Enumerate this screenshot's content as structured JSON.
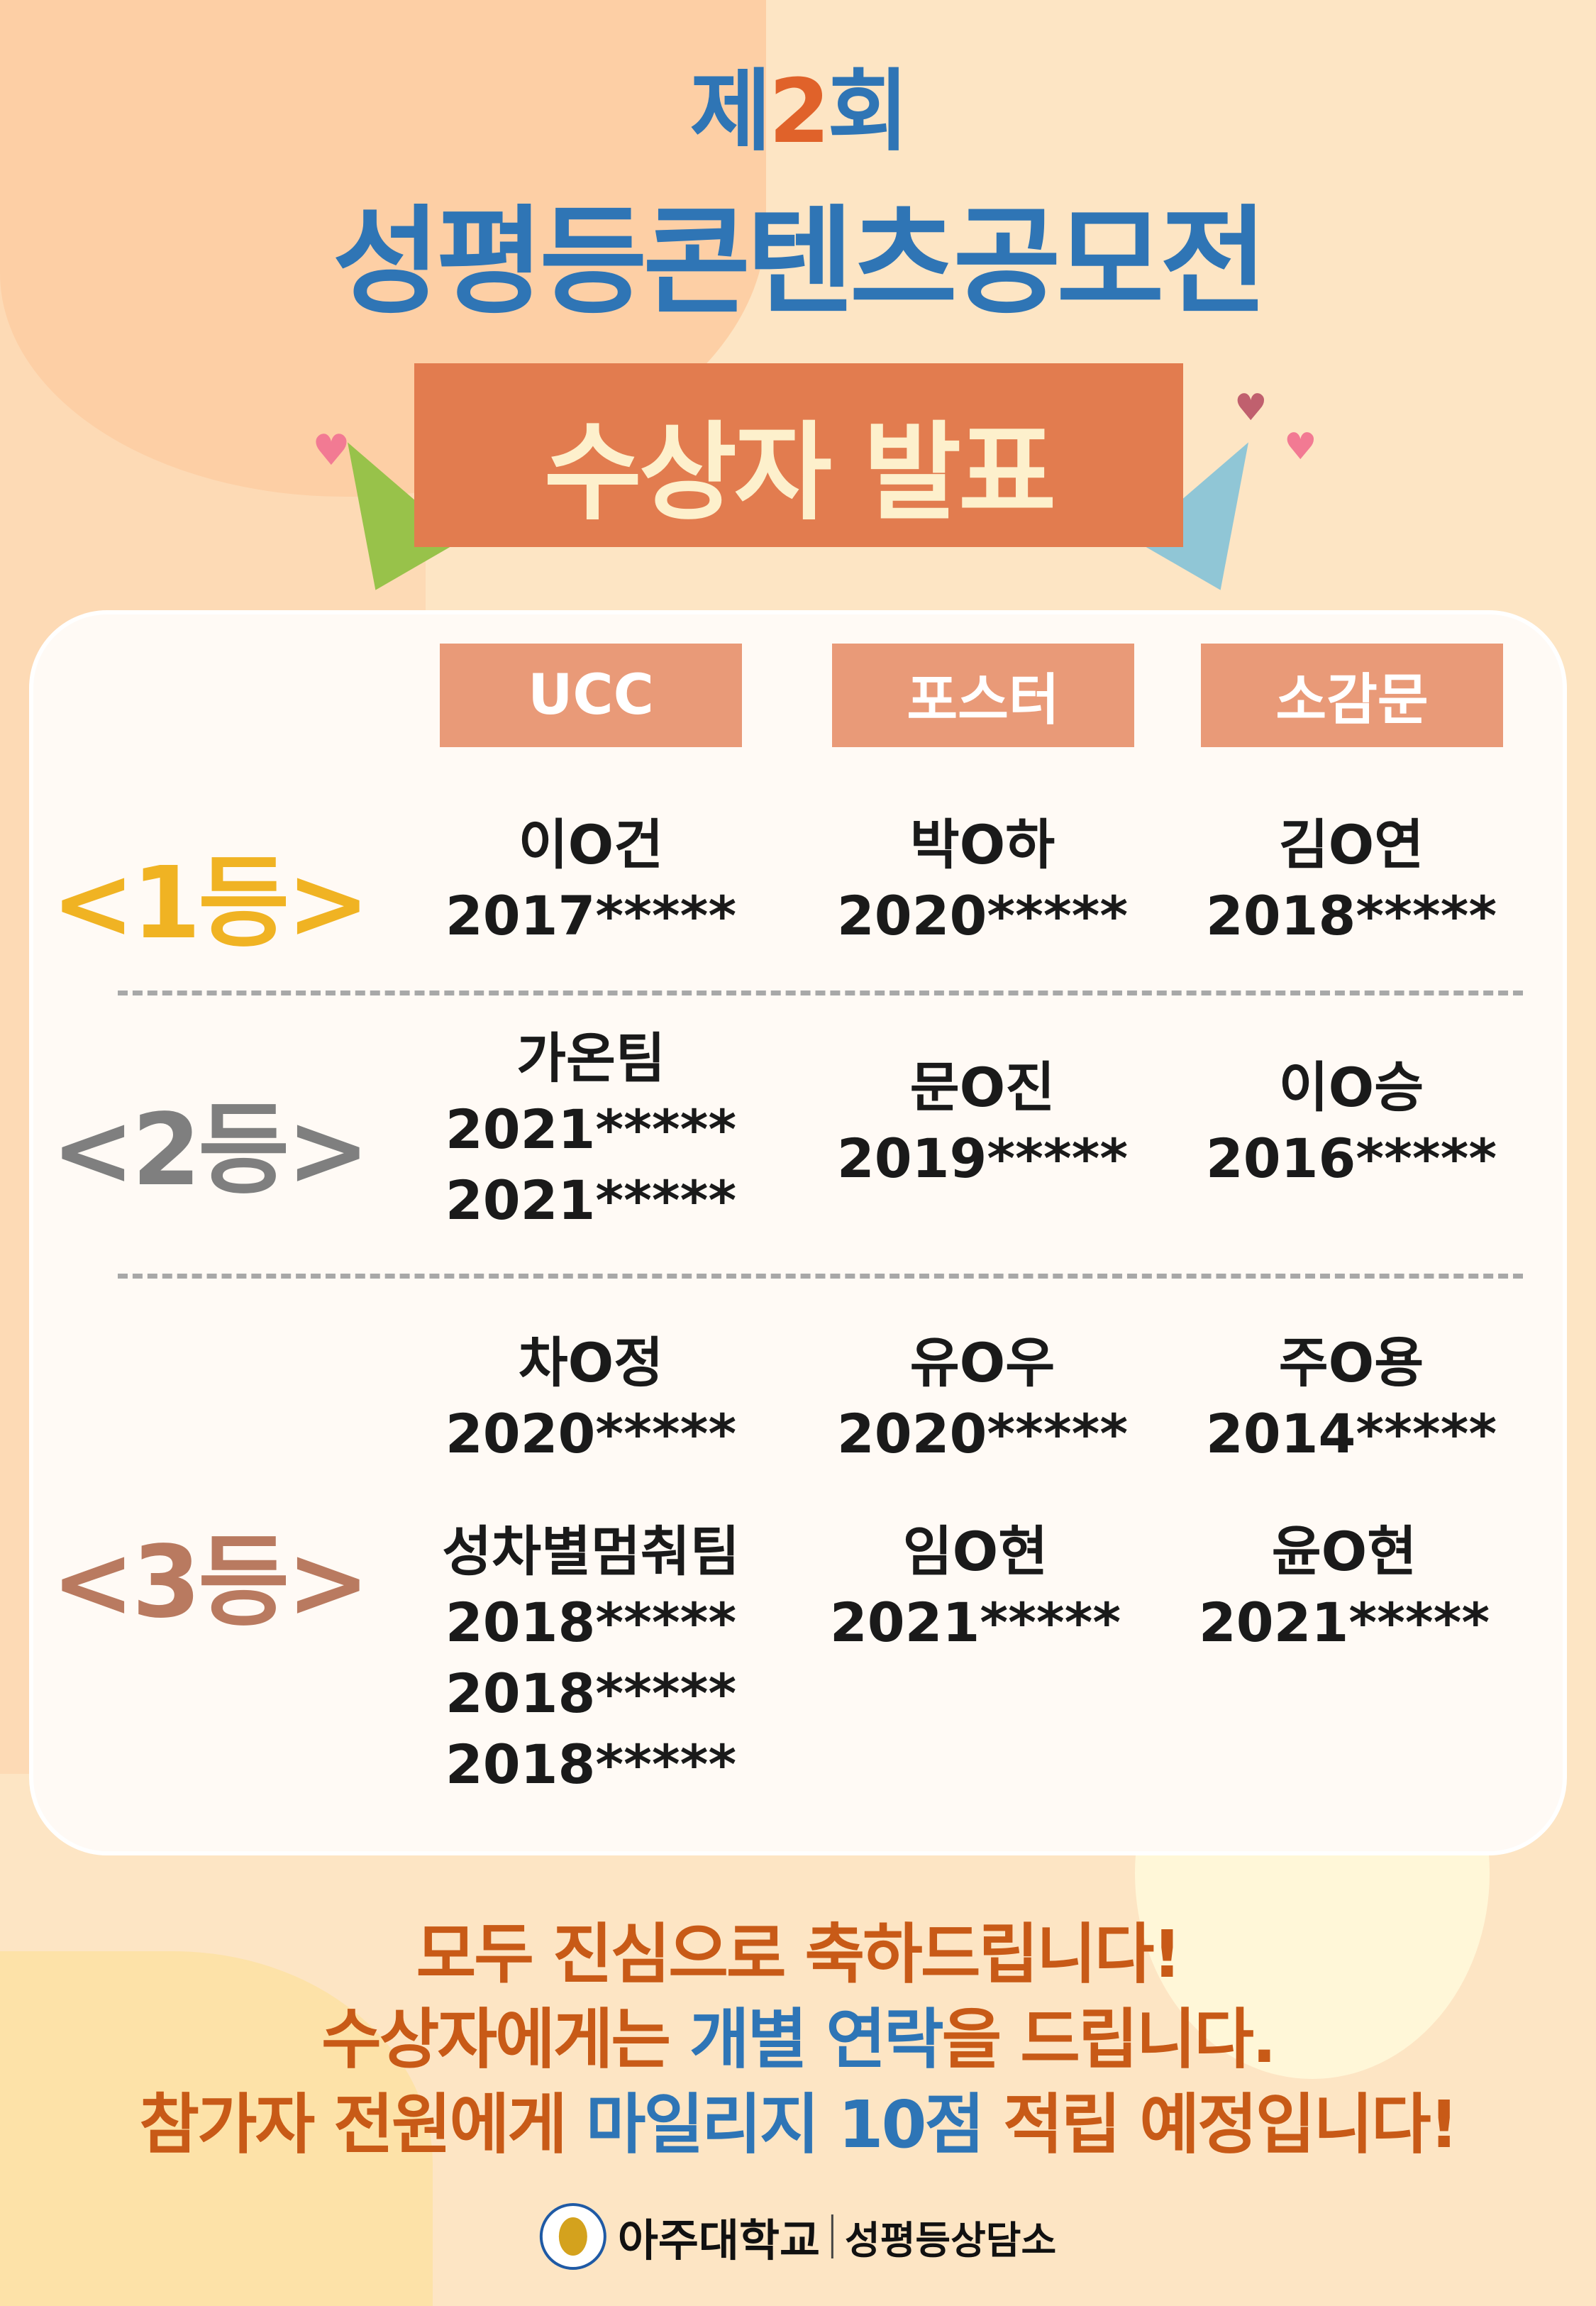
{
  "header": {
    "title_prefix": "제",
    "title_number": "2",
    "title_suffix": "회",
    "title_main": "성평등콘텐츠공모전",
    "banner": "수상자 발표"
  },
  "columns": [
    "UCC",
    "포스터",
    "소감문"
  ],
  "ranks": [
    {
      "label": "<1등>",
      "color": "#f0b323",
      "entries": [
        {
          "ucc": [
            "이O건",
            "2017*****"
          ],
          "poster": [
            "박O하",
            "2020*****"
          ],
          "essay": [
            "김O연",
            "2018*****"
          ]
        }
      ]
    },
    {
      "label": "<2등>",
      "color": "#7f7f7f",
      "entries": [
        {
          "ucc": [
            "가온팀",
            "2021*****",
            "2021*****"
          ],
          "poster": [
            "문O진",
            "2019*****"
          ],
          "essay": [
            "이O승",
            "2016*****"
          ]
        }
      ]
    },
    {
      "label": "<3등>",
      "color": "#b97a60",
      "entries": [
        {
          "ucc": [
            "차O정",
            "2020*****"
          ],
          "poster": [
            "유O우",
            "2020*****"
          ],
          "essay": [
            "주O용",
            "2014*****"
          ]
        },
        {
          "ucc": [
            "성차별멈춰팀",
            "2018*****",
            "2018*****",
            "2018*****"
          ],
          "poster": [
            "임O현",
            "2021*****"
          ],
          "essay": [
            "윤O현",
            "2021*****"
          ]
        }
      ]
    }
  ],
  "footer": {
    "line1": "모두 진심으로 축하드립니다!",
    "line2_a": "수상자에게는 ",
    "line2_hl": "개별 연락",
    "line2_b": "을 드립니다.",
    "line3_a": "참가자 전원에게 ",
    "line3_hl": "마일리지 10점",
    "line3_b": " 적립 예정입니다!"
  },
  "logo": {
    "university": "아주대학교",
    "office": "성평등상담소"
  },
  "colors": {
    "background": "#fde5c4",
    "title_blue": "#2f75b5",
    "accent_orange": "#e0622a",
    "banner": "#e27c4f",
    "column_header": "#e99a78",
    "footer_orange": "#c85a17",
    "footer_blue": "#2e75b6"
  }
}
